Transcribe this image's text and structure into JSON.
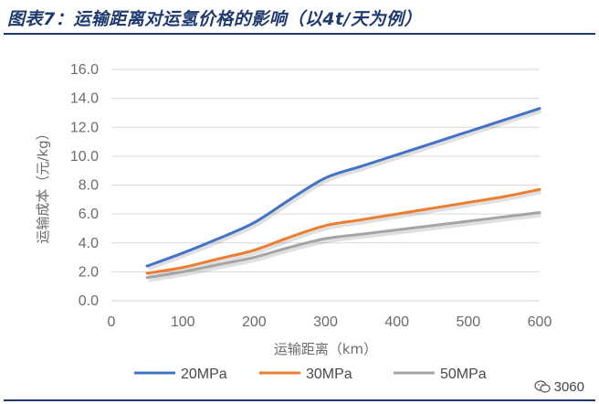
{
  "figure_title": "图表7：运输距离对运氢价格的影响（以4t/天为例）",
  "watermark": "3060",
  "chart_data": {
    "type": "line",
    "xlabel": "运输距离（km）",
    "ylabel": "运输成本（元/kg）",
    "xlim": [
      0,
      600
    ],
    "ylim": [
      0,
      16
    ],
    "xticks": [
      0,
      100,
      200,
      300,
      400,
      500,
      600
    ],
    "yticks": [
      "0.0",
      "2.0",
      "4.0",
      "6.0",
      "8.0",
      "10.0",
      "12.0",
      "14.0",
      "16.0"
    ],
    "grid": "horizontal",
    "legend": "bottom",
    "series": [
      {
        "name": "20MPa",
        "color": "#4472c4",
        "x": [
          50,
          100,
          150,
          200,
          250,
          300,
          350,
          400,
          450,
          500,
          550,
          600
        ],
        "y": [
          2.4,
          3.3,
          4.3,
          5.4,
          7.0,
          8.5,
          9.3,
          10.1,
          10.9,
          11.7,
          12.5,
          13.3
        ]
      },
      {
        "name": "30MPa",
        "color": "#ed7d31",
        "x": [
          50,
          100,
          150,
          200,
          250,
          300,
          350,
          400,
          450,
          500,
          550,
          600
        ],
        "y": [
          1.9,
          2.3,
          2.9,
          3.5,
          4.4,
          5.2,
          5.6,
          6.0,
          6.4,
          6.8,
          7.2,
          7.7
        ]
      },
      {
        "name": "50MPa",
        "color": "#a5a5a5",
        "x": [
          50,
          100,
          150,
          200,
          250,
          300,
          350,
          400,
          450,
          500,
          550,
          600
        ],
        "y": [
          1.6,
          2.0,
          2.5,
          3.0,
          3.7,
          4.3,
          4.6,
          4.9,
          5.2,
          5.5,
          5.8,
          6.1
        ]
      }
    ]
  }
}
